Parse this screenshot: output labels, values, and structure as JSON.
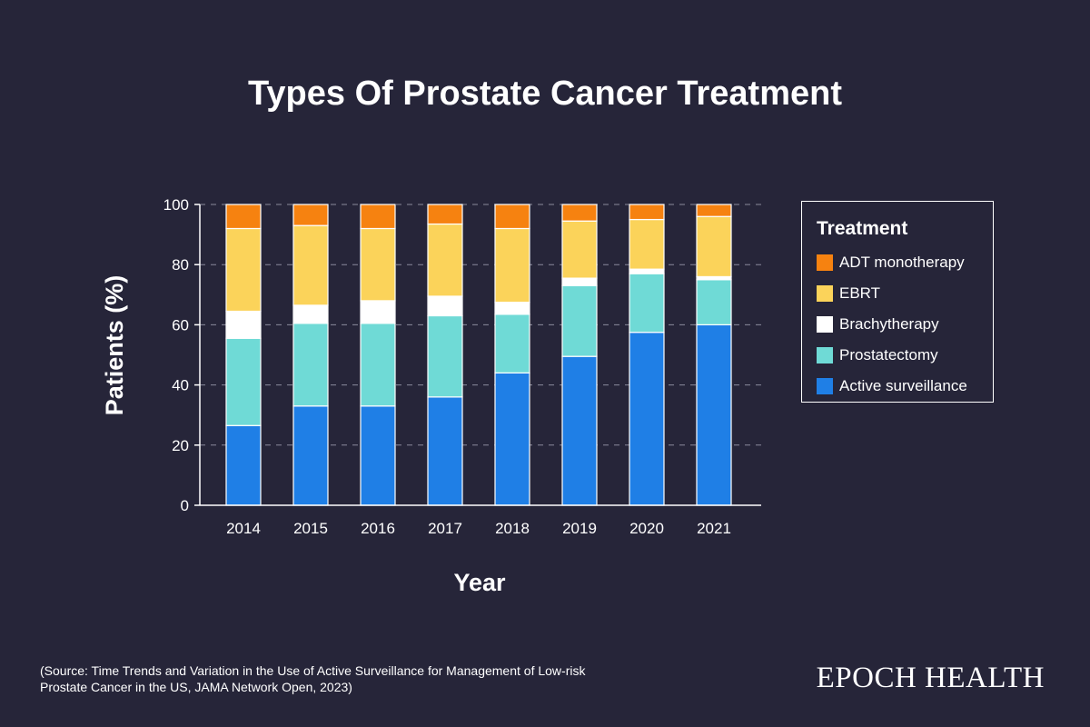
{
  "title": "Types Of Prostate Cancer Treatment",
  "source": "(Source: Time Trends and Variation in the Use of Active Surveillance for Management of Low-risk Prostate Cancer in the US, JAMA Network Open, 2023)",
  "brand": "EPOCH HEALTH",
  "colors": {
    "background": "#262539",
    "active_surveillance": "#1f7fe6",
    "prostatectomy": "#6fdad6",
    "brachytherapy": "#ffffff",
    "ebrt": "#fbd35a",
    "adt_monotherapy": "#f68210"
  },
  "chart_data": {
    "type": "bar",
    "stacked": true,
    "title": "Types Of Prostate Cancer Treatment",
    "xlabel": "Year",
    "ylabel": "Patients (%)",
    "ylim": [
      0,
      100
    ],
    "yticks": [
      0,
      20,
      40,
      60,
      80,
      100
    ],
    "grid": true,
    "legend_title": "Treatment",
    "legend_position": "right",
    "categories": [
      "2014",
      "2015",
      "2016",
      "2017",
      "2018",
      "2019",
      "2020",
      "2021"
    ],
    "series": [
      {
        "name": "Active surveillance",
        "color": "#1f7fe6",
        "values": [
          26.5,
          33,
          33,
          36,
          44,
          49.5,
          57.5,
          60
        ]
      },
      {
        "name": "Prostatectomy",
        "color": "#6fdad6",
        "values": [
          29,
          27.5,
          27.5,
          27,
          19.5,
          23.5,
          19.5,
          15
        ]
      },
      {
        "name": "Brachytherapy",
        "color": "#ffffff",
        "values": [
          9,
          6,
          7.5,
          6.5,
          4,
          2.5,
          1.5,
          1
        ]
      },
      {
        "name": "EBRT",
        "color": "#fbd35a",
        "values": [
          27.5,
          26.5,
          24,
          24,
          24.5,
          19,
          16.5,
          20
        ]
      },
      {
        "name": "ADT monotherapy",
        "color": "#f68210",
        "values": [
          8,
          7,
          8,
          6.5,
          8,
          5.5,
          5,
          4
        ]
      }
    ],
    "legend_order": [
      "ADT monotherapy",
      "EBRT",
      "Brachytherapy",
      "Prostatectomy",
      "Active surveillance"
    ]
  }
}
